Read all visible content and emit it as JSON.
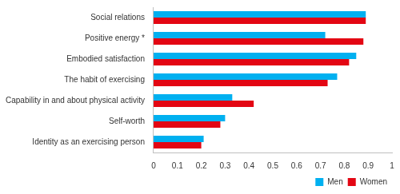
{
  "chart_data": {
    "type": "bar",
    "orientation": "horizontal",
    "categories": [
      "Social relations",
      "Positive energy *",
      "Embodied satisfaction",
      "The habit of exercising",
      "Capability in and about physical activity",
      "Self-worth",
      "Identity as an exercising person"
    ],
    "series": [
      {
        "name": "Men",
        "color": "#00b0f0",
        "values": [
          0.89,
          0.72,
          0.85,
          0.77,
          0.33,
          0.3,
          0.21
        ]
      },
      {
        "name": "Women",
        "color": "#e30613",
        "values": [
          0.89,
          0.88,
          0.82,
          0.73,
          0.42,
          0.28,
          0.2
        ]
      }
    ],
    "xlim": [
      0,
      1
    ],
    "xticks": [
      0,
      0.1,
      0.2,
      0.3,
      0.4,
      0.5,
      0.6,
      0.7,
      0.8,
      0.9,
      1
    ],
    "grid": false,
    "legend": "bottom"
  }
}
